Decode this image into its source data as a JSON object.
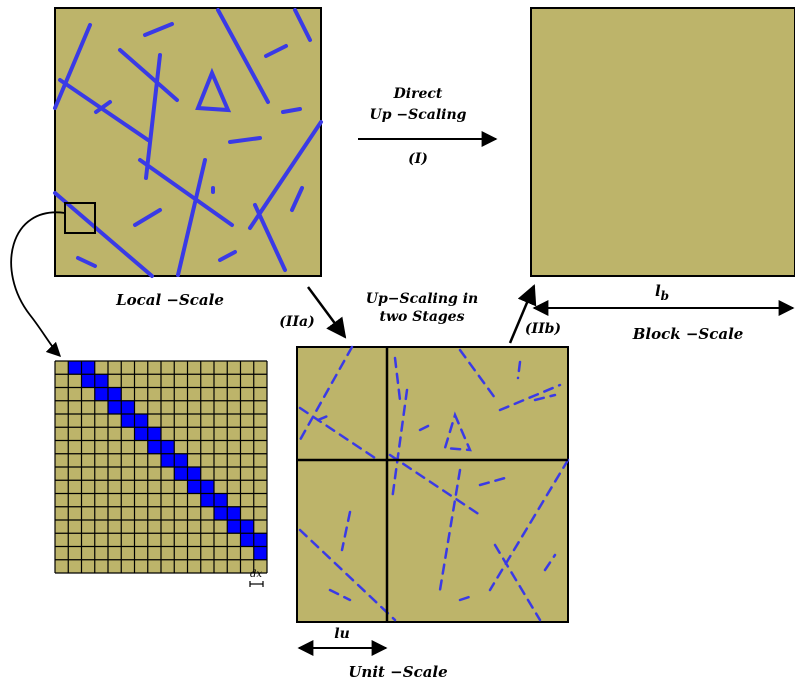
{
  "labels": {
    "local_scale": "Local −Scale",
    "block_scale": "Block −Scale",
    "unit_scale": "Unit −Scale",
    "direct_line1": "Direct",
    "direct_line2": "Up −Scaling",
    "path_I": "(I)",
    "path_IIa": "(IIa)",
    "path_IIb": "(IIb)",
    "two_stage_line1": "Up−Scaling in",
    "two_stage_line2": "two Stages",
    "lb": "l",
    "lb_sub": "b",
    "lu": "lu",
    "dx": "dx"
  },
  "colors": {
    "rock": "#BDB46A",
    "fracture": "#3A3AE6",
    "grid_cell_fill": "#0000FF",
    "outline": "#000000"
  }
}
